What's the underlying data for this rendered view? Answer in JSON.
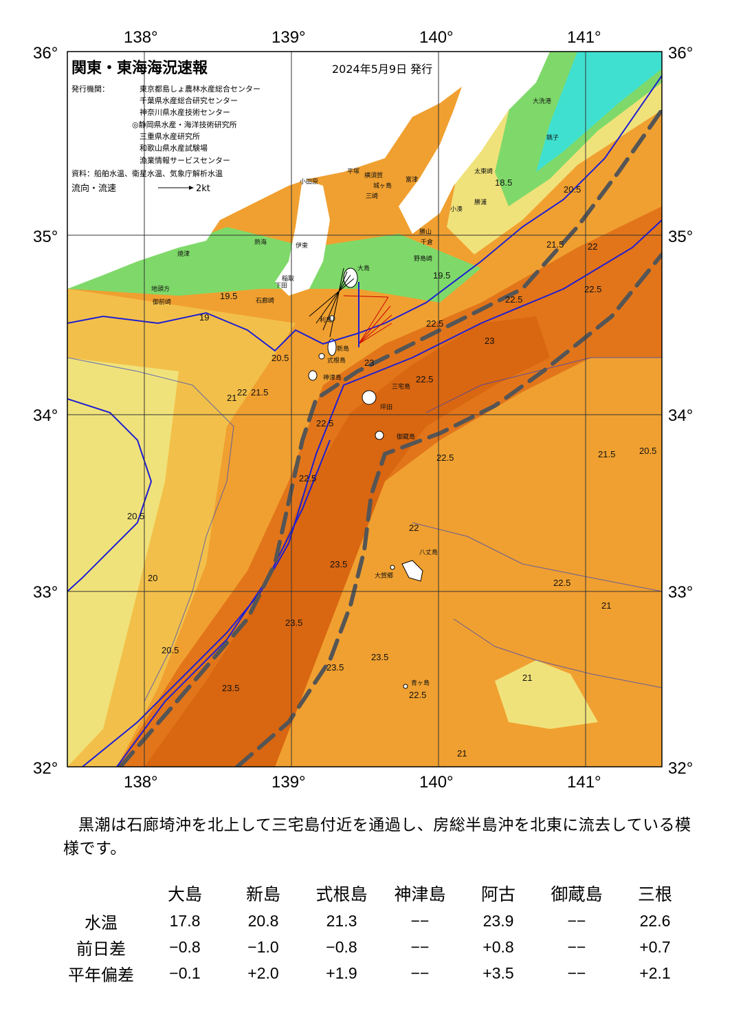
{
  "header": {
    "title": "関東・東海海況速報",
    "issue_date": "2024年5月9日 発行",
    "issuer_label": "発行機関：",
    "issuers": [
      "東京都島しょ農林水産総合センター",
      "千葉県水産総合研究センター",
      "神奈川県水産技術センター",
      "◎静岡県水産・海洋技術研究所",
      "三重県水産研究所",
      "和歌山県水産試験場",
      "漁業情報サービスセンター"
    ],
    "sources": "資料：船舶水温、衛星水温、気象庁解析水温",
    "flow_legend": "流向・流速",
    "flow_scale": "2kt"
  },
  "axes": {
    "lon_labels_top": [
      "138°",
      "139°",
      "140°",
      "141°"
    ],
    "lon_labels_bottom": [
      "138°",
      "139°",
      "140°",
      "141°"
    ],
    "lat_labels_left": [
      "36°",
      "35°",
      "34°",
      "33°",
      "32°"
    ],
    "lat_labels_right": [
      "36°",
      "35°",
      "34°",
      "33°",
      "32°"
    ]
  },
  "place_names": {
    "oshima": "大島",
    "toshima": "利島",
    "niijima": "新島",
    "shikinejima": "式根島",
    "kozushima": "神津島",
    "miyakejima": "三宅島",
    "tsubota": "坪田",
    "mikurajima": "御蔵島",
    "hachijojima": "八丈島",
    "hachijo_kohachijo": "大賀郷",
    "aogashima": "青ヶ島",
    "izu_ito": "伊東",
    "atami": "熱海",
    "inatori": "稲取",
    "shimoda": "下田",
    "irozaki": "石廊崎",
    "yaizu": "焼津",
    "omaezaki": "御前崎",
    "jito": "地頭方",
    "odawara": "小田原",
    "hiratsuka": "平塚",
    "yokosuka": "横須賀",
    "jogashima": "城ヶ島",
    "misaki": "三崎",
    "futtsu": "富津",
    "katsuyama": "勝山",
    "chikura": "千倉",
    "nojimazaki": "野島崎",
    "katsuura": "勝浦",
    "kominato": "小湊",
    "taito": "太東崎",
    "oarai": "大洗港",
    "choshi": "銚子"
  },
  "contour_labels": [
    "19",
    "19.5",
    "20",
    "20.5",
    "21",
    "21.5",
    "22",
    "22.5",
    "23",
    "23.5",
    "18.5"
  ],
  "summary": "黒潮は石廊埼沖を北上して三宅島付近を通過し、房総半島沖を北東に流去している模様です。",
  "table": {
    "columns": [
      "大島",
      "新島",
      "式根島",
      "神津島",
      "阿古",
      "御蔵島",
      "三根"
    ],
    "rows": [
      {
        "label": "水温",
        "values": [
          "17.8",
          "20.8",
          "21.3",
          "−−",
          "23.9",
          "−−",
          "22.6"
        ]
      },
      {
        "label": "前日差",
        "values": [
          "−0.8",
          "−1.0",
          "−0.8",
          "−−",
          "+0.8",
          "−−",
          "+0.7"
        ]
      },
      {
        "label": "平年偏差",
        "values": [
          "−0.1",
          "+2.0",
          "+1.9",
          "−−",
          "+3.5",
          "−−",
          "+2.1"
        ]
      }
    ]
  },
  "colors": {
    "land": "#ffffff",
    "water_19": "#7fd96a",
    "water_18": "#40e0d0",
    "water_20": "#f0e27a",
    "water_21": "#f2c04a",
    "water_22": "#f0a030",
    "water_23": "#e2751a",
    "water_235": "#d96610",
    "contour": "#1e1ed2",
    "kuroshio_axis": "#555555"
  }
}
